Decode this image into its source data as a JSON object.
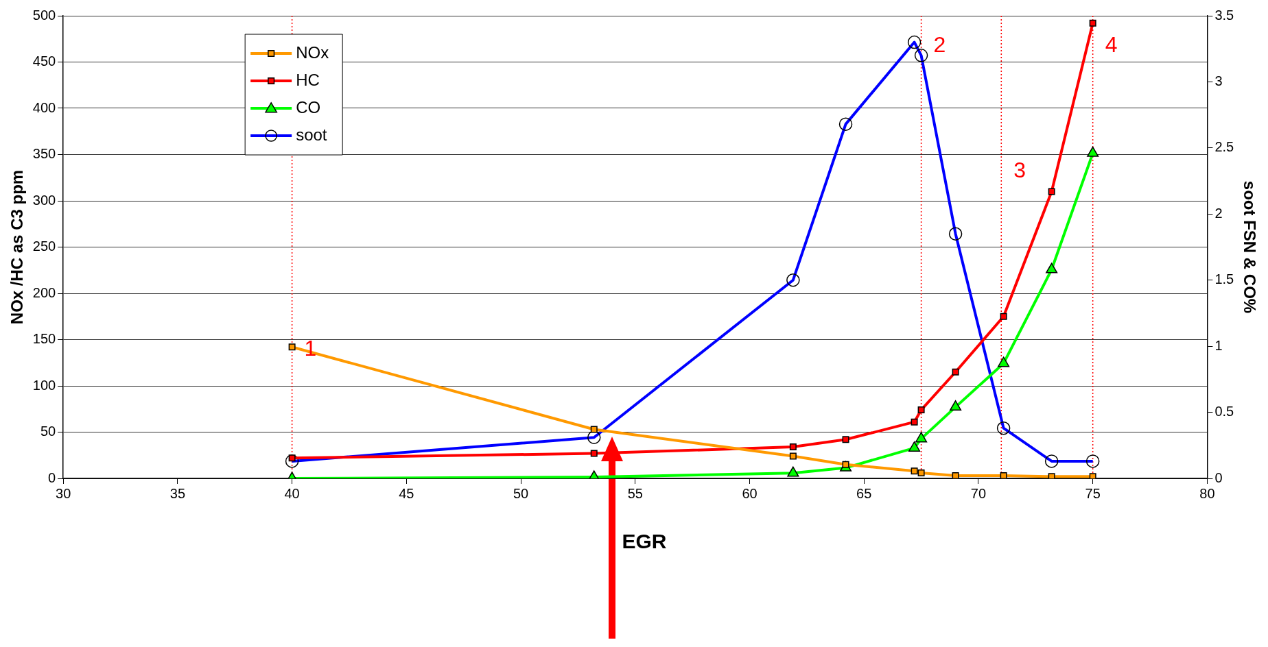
{
  "chart_data": {
    "type": "line",
    "x": [
      40,
      53.2,
      61.9,
      64.2,
      67.2,
      67.5,
      69.0,
      71.1,
      73.2,
      75.0
    ],
    "series": [
      {
        "name": "NOx",
        "color": "#ff9900",
        "marker": "square",
        "values": [
          142,
          53,
          24,
          15,
          8,
          6,
          3,
          3,
          2,
          2
        ]
      },
      {
        "name": "HC",
        "color": "#ff0000",
        "marker": "square",
        "values": [
          22,
          27,
          34,
          42,
          61,
          74,
          115,
          175,
          310,
          492
        ]
      },
      {
        "name": "CO",
        "color": "#00ff00",
        "marker": "triangle",
        "axis": "y2",
        "values": [
          0,
          0.01,
          0.04,
          0.08,
          0.23,
          0.3,
          0.54,
          0.87,
          1.58,
          2.46
        ]
      },
      {
        "name": "soot",
        "color": "#0000ff",
        "marker": "circle",
        "axis": "y2",
        "values": [
          0.13,
          0.31,
          1.5,
          2.68,
          3.3,
          3.2,
          1.85,
          0.38,
          0.13,
          0.13
        ]
      }
    ],
    "ylabel": "NOx /HC as C3 ppm",
    "y2label": "soot FSN & CO%",
    "xlim": [
      30,
      80
    ],
    "xticks": [
      30,
      35,
      40,
      45,
      50,
      55,
      60,
      65,
      70,
      75,
      80
    ],
    "ylim": [
      0,
      500
    ],
    "yticks": [
      0,
      50,
      100,
      150,
      200,
      250,
      300,
      350,
      400,
      450,
      500
    ],
    "y2lim": [
      0,
      3.5
    ],
    "y2ticks": [
      0,
      0.5,
      1,
      1.5,
      2,
      2.5,
      3,
      3.5
    ],
    "grid": "y",
    "legend": "top left",
    "line_style": "solid",
    "ref_lines": [
      {
        "axis": "x",
        "value": 40,
        "color": "#ff0000",
        "line_style": "dotted"
      },
      {
        "axis": "x",
        "value": 67.5,
        "color": "#ff0000",
        "line_style": "dotted"
      },
      {
        "axis": "x",
        "value": 71,
        "color": "#ff0000",
        "line_style": "dotted"
      },
      {
        "axis": "x",
        "value": 75,
        "color": "#ff0000",
        "line_style": "dotted"
      }
    ],
    "annotations": [
      {
        "text": "1",
        "x": 40,
        "y": 142
      },
      {
        "text": "2",
        "x": 67.5,
        "y": 470
      },
      {
        "text": "3",
        "x": 71,
        "y": 335
      },
      {
        "text": "4",
        "x": 75,
        "y": 470
      },
      "EGR"
    ]
  }
}
